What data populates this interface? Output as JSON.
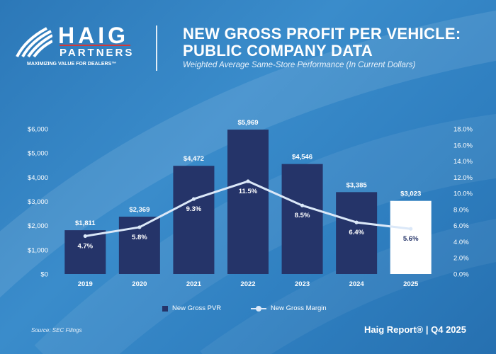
{
  "brand": {
    "name": "HAIG",
    "subname": "PARTNERS",
    "tagline": "MAXIMIZING VALUE FOR DEALERS™"
  },
  "header": {
    "title_line1": "NEW GROSS PROFIT PER VEHICLE:",
    "title_line2": "PUBLIC COMPANY DATA",
    "subtitle": "Weighted Average Same-Store Performance (In Current Dollars)"
  },
  "legend": {
    "bar_label": "New Gross PVR",
    "line_label": "New Gross Margin"
  },
  "source": "Source: SEC Filings",
  "footer": "Haig Report® | Q4 2025",
  "colors": {
    "bar": "#253469",
    "bar_highlight": "#ffffff",
    "line": "#dbe8f8",
    "label_text": "#ffffff",
    "highlight_text": "#253469"
  },
  "chart_data": {
    "type": "bar",
    "title": "New Gross Profit Per Vehicle: Public Company Data",
    "categories": [
      "2019",
      "2020",
      "2021",
      "2022",
      "2023",
      "2024",
      "2025"
    ],
    "series": [
      {
        "name": "New Gross PVR",
        "type": "bar",
        "axis": "left",
        "values": [
          1811,
          2369,
          4472,
          5969,
          4546,
          3385,
          3023
        ],
        "labels": [
          "$1,811",
          "$2,369",
          "$4,472",
          "$5,969",
          "$4,546",
          "$3,385",
          "$3,023"
        ],
        "highlight_index": 6
      },
      {
        "name": "New Gross Margin",
        "type": "line",
        "axis": "right",
        "values": [
          4.7,
          5.8,
          9.3,
          11.5,
          8.5,
          6.4,
          5.6
        ],
        "labels": [
          "4.7%",
          "5.8%",
          "9.3%",
          "11.5%",
          "8.5%",
          "6.4%",
          "5.6%"
        ]
      }
    ],
    "y_left": {
      "min": 0,
      "max": 6000,
      "ticks": [
        0,
        1000,
        2000,
        3000,
        4000,
        5000,
        6000
      ],
      "tick_labels": [
        "$0",
        "$1,000",
        "$2,000",
        "$3,000",
        "$4,000",
        "$5,000",
        "$6,000"
      ]
    },
    "y_right": {
      "min": 0,
      "max": 18,
      "ticks": [
        0,
        2,
        4,
        6,
        8,
        10,
        12,
        14,
        16,
        18
      ],
      "tick_labels": [
        "0.0%",
        "2.0%",
        "4.0%",
        "6.0%",
        "8.0%",
        "10.0%",
        "12.0%",
        "14.0%",
        "16.0%",
        "18.0%"
      ]
    },
    "grid": false,
    "legend_position": "bottom"
  }
}
